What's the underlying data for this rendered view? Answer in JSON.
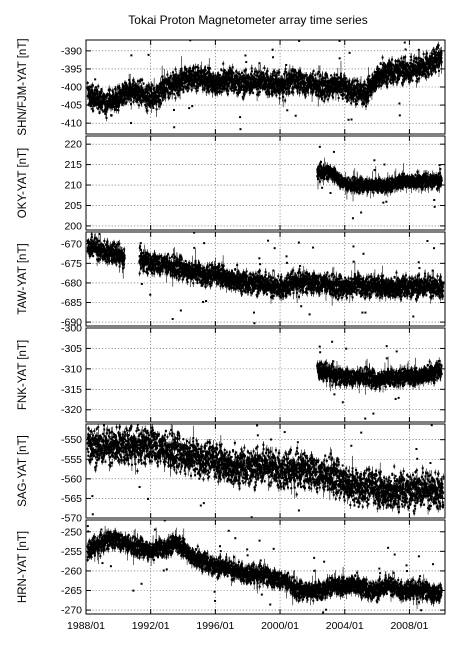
{
  "chart_data": {
    "type": "scatter",
    "title": "Tokai Proton Magnetometer array time series",
    "xlabel": "",
    "x_tick_labels": [
      "1988/01",
      "1992/01",
      "1996/01",
      "2000/01",
      "2004/01",
      "2008/01"
    ],
    "x_tick_years": [
      1988,
      1992,
      1996,
      2000,
      2004,
      2008
    ],
    "xlim": [
      1988.0,
      2010.2
    ],
    "grid": true,
    "error_bars": true,
    "panels": [
      {
        "ylabel": "SHN/FJM-YAT [nT]",
        "ylim": [
          -413,
          -387
        ],
        "yticks": [
          -390,
          -395,
          -400,
          -405,
          -410
        ],
        "spread": 1.6,
        "points": [
          [
            1988.1,
            -402
          ],
          [
            1988.5,
            -403
          ],
          [
            1989.0,
            -404
          ],
          [
            1989.5,
            -404
          ],
          [
            1990.0,
            -403
          ],
          [
            1990.5,
            -402
          ],
          [
            1991.0,
            -401
          ],
          [
            1991.5,
            -402
          ],
          [
            1992.0,
            -403
          ],
          [
            1992.5,
            -402
          ],
          [
            1993.0,
            -400
          ],
          [
            1993.5,
            -399
          ],
          [
            1994.0,
            -398
          ],
          [
            1994.5,
            -397
          ],
          [
            1995.0,
            -398
          ],
          [
            1995.5,
            -398
          ],
          [
            1996.0,
            -399
          ],
          [
            1996.5,
            -398
          ],
          [
            1997.0,
            -398
          ],
          [
            1997.5,
            -399
          ],
          [
            1998.0,
            -399
          ],
          [
            1998.5,
            -399
          ],
          [
            1999.0,
            -398
          ],
          [
            1999.3,
            -399
          ],
          [
            1999.7,
            -399
          ],
          [
            2000.0,
            -400
          ],
          [
            2000.5,
            -399
          ],
          [
            2001.0,
            -398
          ],
          [
            2001.5,
            -399
          ],
          [
            2002.0,
            -399
          ],
          [
            2002.5,
            -400
          ],
          [
            2003.0,
            -400
          ],
          [
            2003.5,
            -399
          ],
          [
            2004.0,
            -400
          ],
          [
            2004.5,
            -401
          ],
          [
            2005.0,
            -402
          ],
          [
            2005.3,
            -402
          ],
          [
            2006.0,
            -397
          ],
          [
            2006.5,
            -396
          ],
          [
            2007.0,
            -396
          ],
          [
            2007.5,
            -395
          ],
          [
            2008.0,
            -396
          ],
          [
            2008.5,
            -395
          ],
          [
            2009.0,
            -394
          ],
          [
            2009.5,
            -393
          ],
          [
            2010.0,
            -392
          ]
        ]
      },
      {
        "ylabel": "OKY-YAT [nT]",
        "ylim": [
          199,
          222
        ],
        "yticks": [
          220,
          215,
          210,
          205,
          200
        ],
        "spread": 0.8,
        "points": [
          [
            2002.3,
            213
          ],
          [
            2002.6,
            213
          ],
          [
            2002.9,
            213
          ],
          [
            2003.2,
            213
          ],
          [
            2003.5,
            212
          ],
          [
            2003.8,
            211
          ],
          [
            2004.2,
            210
          ],
          [
            2004.6,
            210
          ],
          [
            2005.0,
            210
          ],
          [
            2005.5,
            210
          ],
          [
            2006.0,
            210
          ],
          [
            2006.5,
            210
          ],
          [
            2007.0,
            210
          ],
          [
            2007.5,
            211
          ],
          [
            2008.0,
            211
          ],
          [
            2008.5,
            211
          ],
          [
            2009.0,
            211
          ],
          [
            2009.5,
            211
          ],
          [
            2010.0,
            211
          ]
        ]
      },
      {
        "ylabel": "TAW-YAT [nT]",
        "ylim": [
          -691,
          -667
        ],
        "yticks": [
          -670,
          -675,
          -680,
          -685,
          -690
        ],
        "spread": 1.3,
        "points": [
          [
            1988.1,
            -671
          ],
          [
            1988.5,
            -671
          ],
          [
            1989.0,
            -672
          ],
          [
            1989.5,
            -672
          ],
          [
            1990.0,
            -673
          ],
          [
            1990.4,
            -674
          ],
          [
            1991.3,
            -674
          ],
          [
            1991.8,
            -675
          ],
          [
            1992.3,
            -675
          ],
          [
            1992.8,
            -675
          ],
          [
            1993.3,
            -676
          ],
          [
            1993.8,
            -676
          ],
          [
            1994.3,
            -677
          ],
          [
            1994.8,
            -677
          ],
          [
            1995.3,
            -678
          ],
          [
            1995.8,
            -678
          ],
          [
            1996.3,
            -678
          ],
          [
            1996.8,
            -679
          ],
          [
            1997.3,
            -679
          ],
          [
            1997.8,
            -680
          ],
          [
            1998.3,
            -680
          ],
          [
            1998.8,
            -680
          ],
          [
            1999.3,
            -681
          ],
          [
            1999.8,
            -681
          ],
          [
            2000.3,
            -681
          ],
          [
            2000.8,
            -680
          ],
          [
            2001.3,
            -680
          ],
          [
            2001.8,
            -680
          ],
          [
            2002.3,
            -680
          ],
          [
            2002.8,
            -680
          ],
          [
            2003.3,
            -681
          ],
          [
            2003.8,
            -681
          ],
          [
            2004.3,
            -681
          ],
          [
            2004.8,
            -680
          ],
          [
            2005.3,
            -681
          ],
          [
            2005.8,
            -681
          ],
          [
            2006.3,
            -681
          ],
          [
            2006.8,
            -681
          ],
          [
            2007.3,
            -681
          ],
          [
            2007.8,
            -681
          ],
          [
            2008.3,
            -681
          ],
          [
            2008.8,
            -681
          ],
          [
            2009.3,
            -681
          ],
          [
            2009.8,
            -681
          ],
          [
            2010.1,
            -681
          ]
        ]
      },
      {
        "ylabel": "FNK-YAT [nT]",
        "ylim": [
          -323,
          -300
        ],
        "yticks": [
          -300,
          -305,
          -310,
          -315,
          -320
        ],
        "spread": 1.0,
        "points": [
          [
            2002.3,
            -310
          ],
          [
            2002.7,
            -311
          ],
          [
            2003.1,
            -311
          ],
          [
            2003.5,
            -312
          ],
          [
            2003.9,
            -312
          ],
          [
            2004.3,
            -312
          ],
          [
            2004.7,
            -312
          ],
          [
            2005.1,
            -312
          ],
          [
            2005.5,
            -312
          ],
          [
            2006.0,
            -313
          ],
          [
            2006.5,
            -312
          ],
          [
            2007.0,
            -312
          ],
          [
            2007.5,
            -312
          ],
          [
            2008.0,
            -312
          ],
          [
            2008.5,
            -312
          ],
          [
            2009.0,
            -311
          ],
          [
            2009.5,
            -311
          ],
          [
            2010.0,
            -310
          ]
        ]
      },
      {
        "ylabel": "SAG-YAT [nT]",
        "ylim": [
          -570,
          -546
        ],
        "yticks": [
          -550,
          -555,
          -560,
          -565,
          -570
        ],
        "spread": 2.2,
        "points": [
          [
            1988.1,
            -551
          ],
          [
            1988.6,
            -552
          ],
          [
            1989.1,
            -552
          ],
          [
            1989.6,
            -552
          ],
          [
            1990.1,
            -551
          ],
          [
            1990.6,
            -552
          ],
          [
            1991.1,
            -552
          ],
          [
            1991.6,
            -552
          ],
          [
            1992.1,
            -551
          ],
          [
            1992.6,
            -552
          ],
          [
            1993.1,
            -553
          ],
          [
            1993.6,
            -553
          ],
          [
            1994.1,
            -554
          ],
          [
            1994.6,
            -554
          ],
          [
            1995.1,
            -555
          ],
          [
            1995.6,
            -555
          ],
          [
            1996.1,
            -556
          ],
          [
            1996.6,
            -556
          ],
          [
            1997.1,
            -557
          ],
          [
            1997.6,
            -557
          ],
          [
            1998.1,
            -557
          ],
          [
            1998.6,
            -557
          ],
          [
            1999.1,
            -557
          ],
          [
            1999.6,
            -557
          ],
          [
            2000.1,
            -558
          ],
          [
            2000.6,
            -558
          ],
          [
            2001.1,
            -558
          ],
          [
            2001.6,
            -558
          ],
          [
            2002.1,
            -558
          ],
          [
            2002.6,
            -559
          ],
          [
            2003.1,
            -559
          ],
          [
            2003.6,
            -560
          ],
          [
            2004.1,
            -561
          ],
          [
            2004.6,
            -562
          ],
          [
            2005.1,
            -562
          ],
          [
            2005.6,
            -562
          ],
          [
            2006.1,
            -563
          ],
          [
            2006.6,
            -563
          ],
          [
            2007.1,
            -563
          ],
          [
            2007.6,
            -563
          ],
          [
            2008.1,
            -563
          ],
          [
            2008.6,
            -563
          ],
          [
            2009.1,
            -563
          ],
          [
            2009.6,
            -563
          ],
          [
            2010.1,
            -563
          ]
        ]
      },
      {
        "ylabel": "HRN-YAT [nT]",
        "ylim": [
          -271,
          -247
        ],
        "yticks": [
          -250,
          -255,
          -260,
          -265,
          -270
        ],
        "spread": 1.1,
        "points": [
          [
            1988.1,
            -255
          ],
          [
            1988.5,
            -254
          ],
          [
            1989.0,
            -253
          ],
          [
            1989.5,
            -252
          ],
          [
            1990.0,
            -252
          ],
          [
            1990.5,
            -253
          ],
          [
            1991.0,
            -254
          ],
          [
            1991.4,
            -254
          ],
          [
            1992.0,
            -255
          ],
          [
            1992.5,
            -254
          ],
          [
            1993.0,
            -254
          ],
          [
            1993.5,
            -253
          ],
          [
            1994.0,
            -254
          ],
          [
            1994.5,
            -256
          ],
          [
            1995.0,
            -257
          ],
          [
            1995.5,
            -258
          ],
          [
            1996.0,
            -259
          ],
          [
            1996.5,
            -259
          ],
          [
            1997.0,
            -260
          ],
          [
            1997.5,
            -260
          ],
          [
            1998.0,
            -261
          ],
          [
            1998.5,
            -261
          ],
          [
            1999.0,
            -261
          ],
          [
            1999.5,
            -262
          ],
          [
            2000.0,
            -262
          ],
          [
            2000.5,
            -263
          ],
          [
            2001.0,
            -265
          ],
          [
            2001.5,
            -265
          ],
          [
            2002.0,
            -265
          ],
          [
            2002.5,
            -265
          ],
          [
            2003.0,
            -264
          ],
          [
            2003.5,
            -264
          ],
          [
            2004.0,
            -264
          ],
          [
            2004.5,
            -263
          ],
          [
            2005.0,
            -264
          ],
          [
            2005.5,
            -265
          ],
          [
            2006.0,
            -265
          ],
          [
            2006.5,
            -264
          ],
          [
            2007.0,
            -264
          ],
          [
            2007.5,
            -265
          ],
          [
            2008.0,
            -265
          ],
          [
            2008.5,
            -265
          ],
          [
            2009.0,
            -265
          ],
          [
            2009.5,
            -266
          ],
          [
            2010.0,
            -265
          ]
        ]
      }
    ]
  }
}
